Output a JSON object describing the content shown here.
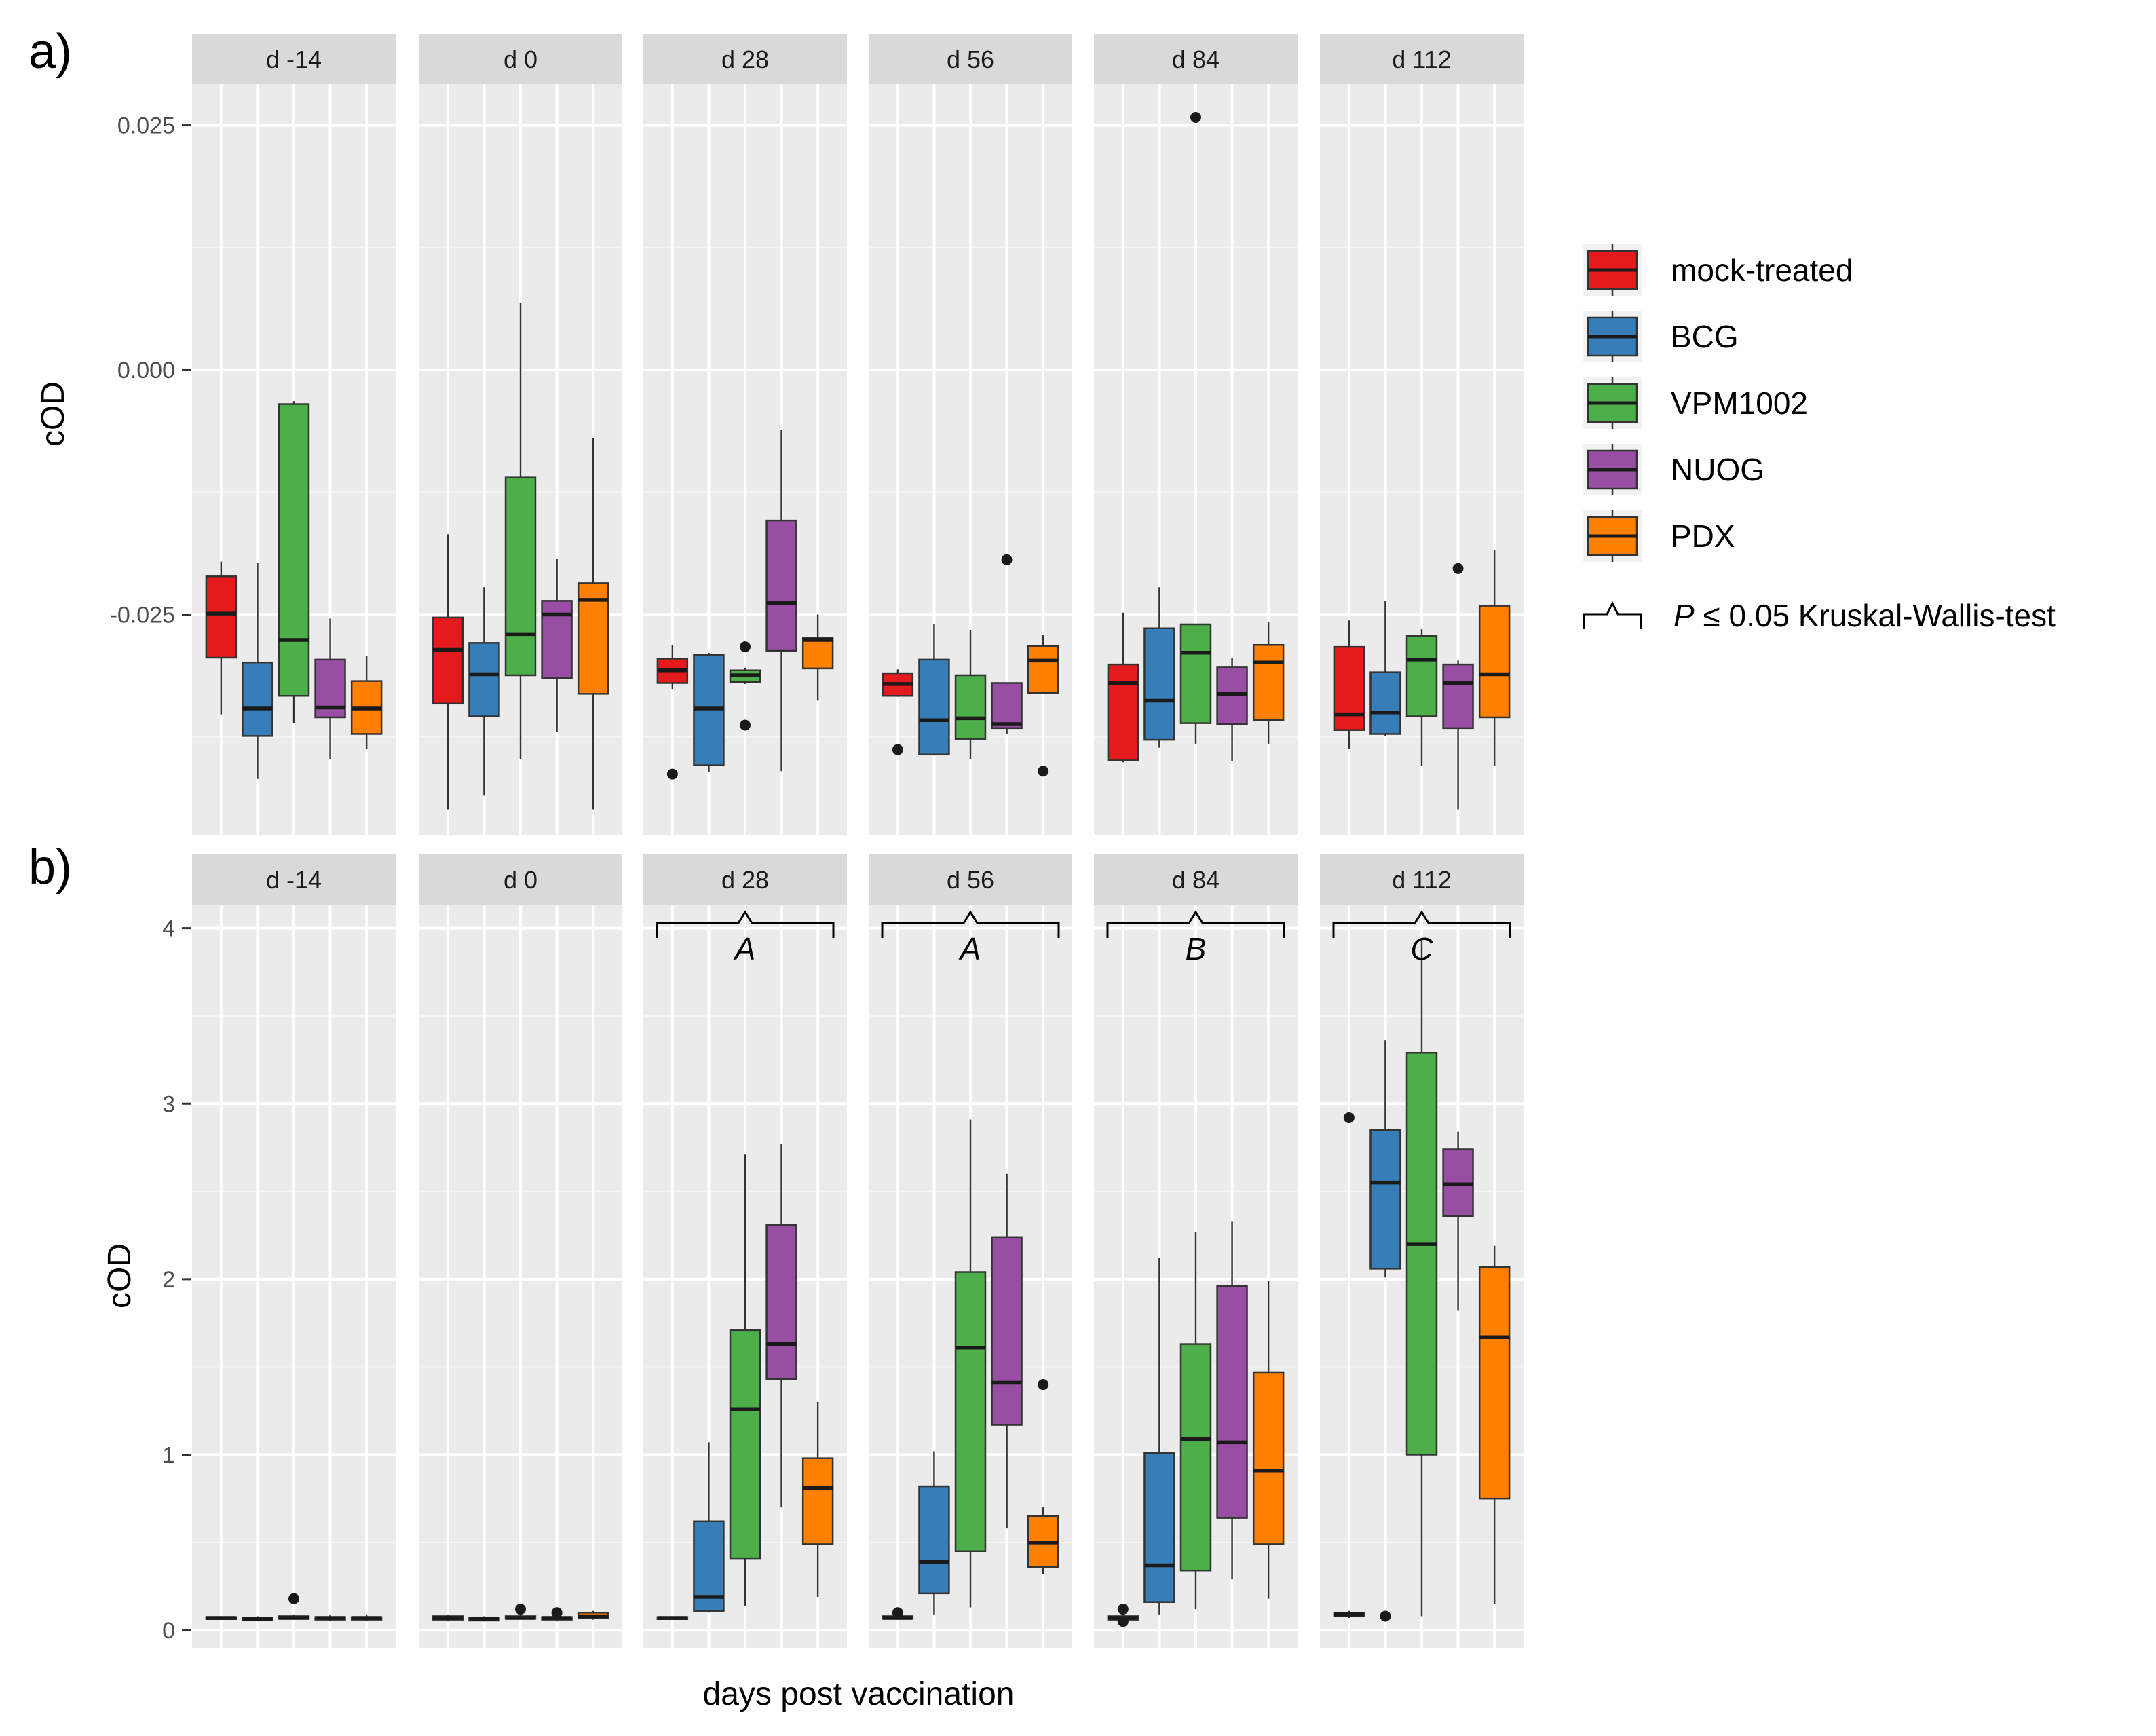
{
  "figure": {
    "panel_a_label": "a)",
    "panel_b_label": "b)",
    "xlabel": "days post vaccination",
    "ylabel": "cOD",
    "legend_sig_prefix": "P",
    "legend_sig_suffix": "≤ 0.05  Kruskal-Wallis-test"
  },
  "colors": {
    "mock-treated": "#E41A1C",
    "BCG": "#377EB8",
    "VPM1002": "#4DAF4A",
    "NUOG": "#984EA3",
    "PDX": "#FF7F00"
  },
  "chart_data": [
    {
      "panel": "a",
      "type": "box",
      "ylabel": "cOD",
      "xlabel": "",
      "ylim": [
        -0.0475,
        0.0292
      ],
      "yticks": [
        -0.025,
        0.0,
        0.025
      ],
      "ytick_labels": [
        "-0.025",
        "0.000",
        "0.025"
      ],
      "groups": [
        "mock-treated",
        "BCG",
        "VPM1002",
        "NUOG",
        "PDX"
      ],
      "facets": [
        {
          "label": "d -14",
          "boxes": [
            {
              "whislo": -0.0352,
              "q1": -0.0294,
              "med": -0.0249,
              "q3": -0.0211,
              "whishi": -0.0196,
              "outliers": []
            },
            {
              "whislo": -0.0418,
              "q1": -0.0374,
              "med": -0.0346,
              "q3": -0.0299,
              "whishi": -0.0197,
              "outliers": []
            },
            {
              "whislo": -0.0361,
              "q1": -0.0333,
              "med": -0.0276,
              "q3": -0.0035,
              "whishi": -0.0032,
              "outliers": []
            },
            {
              "whislo": -0.0398,
              "q1": -0.0355,
              "med": -0.0345,
              "q3": -0.0296,
              "whishi": -0.0254,
              "outliers": []
            },
            {
              "whislo": -0.0387,
              "q1": -0.0372,
              "med": -0.0346,
              "q3": -0.0318,
              "whishi": -0.0292,
              "outliers": []
            }
          ]
        },
        {
          "label": "d 0",
          "boxes": [
            {
              "whislo": -0.0449,
              "q1": -0.0341,
              "med": -0.0286,
              "q3": -0.0253,
              "whishi": -0.0168,
              "outliers": []
            },
            {
              "whislo": -0.0435,
              "q1": -0.0354,
              "med": -0.0311,
              "q3": -0.0279,
              "whishi": -0.0222,
              "outliers": []
            },
            {
              "whislo": -0.0398,
              "q1": -0.0312,
              "med": -0.027,
              "q3": -0.011,
              "whishi": 0.0068,
              "outliers": []
            },
            {
              "whislo": -0.037,
              "q1": -0.0315,
              "med": -0.025,
              "q3": -0.0236,
              "whishi": -0.0193,
              "outliers": []
            },
            {
              "whislo": -0.0449,
              "q1": -0.0331,
              "med": -0.0235,
              "q3": -0.0218,
              "whishi": -0.007,
              "outliers": []
            }
          ]
        },
        {
          "label": "d 28",
          "boxes": [
            {
              "whislo": -0.0326,
              "q1": -0.032,
              "med": -0.0307,
              "q3": -0.0295,
              "whishi": -0.0281,
              "outliers": [
                -0.0413
              ]
            },
            {
              "whislo": -0.0411,
              "q1": -0.0404,
              "med": -0.0346,
              "q3": -0.0291,
              "whishi": -0.0289,
              "outliers": []
            },
            {
              "whislo": -0.0321,
              "q1": -0.0319,
              "med": -0.0312,
              "q3": -0.0307,
              "whishi": -0.0305,
              "outliers": [
                -0.0283,
                -0.0363
              ]
            },
            {
              "whislo": -0.041,
              "q1": -0.0287,
              "med": -0.0238,
              "q3": -0.0154,
              "whishi": -0.0061,
              "outliers": []
            },
            {
              "whislo": -0.0338,
              "q1": -0.0305,
              "med": -0.0276,
              "q3": -0.0274,
              "whishi": -0.025,
              "outliers": []
            }
          ]
        },
        {
          "label": "d 56",
          "boxes": [
            {
              "whislo": -0.0334,
              "q1": -0.0333,
              "med": -0.0321,
              "q3": -0.031,
              "whishi": -0.0306,
              "outliers": [
                -0.0388
              ]
            },
            {
              "whislo": -0.0394,
              "q1": -0.0393,
              "med": -0.0358,
              "q3": -0.0296,
              "whishi": -0.026,
              "outliers": []
            },
            {
              "whislo": -0.0398,
              "q1": -0.0377,
              "med": -0.0356,
              "q3": -0.0312,
              "whishi": -0.0266,
              "outliers": []
            },
            {
              "whislo": -0.0372,
              "q1": -0.0366,
              "med": -0.0362,
              "q3": -0.032,
              "whishi": -0.032,
              "outliers": [
                -0.0194
              ]
            },
            {
              "whislo": -0.0331,
              "q1": -0.033,
              "med": -0.0297,
              "q3": -0.0282,
              "whishi": -0.0271,
              "outliers": [
                -0.041
              ]
            }
          ]
        },
        {
          "label": "d 84",
          "boxes": [
            {
              "whislo": -0.0401,
              "q1": -0.0399,
              "med": -0.032,
              "q3": -0.0301,
              "whishi": -0.0248,
              "outliers": []
            },
            {
              "whislo": -0.0386,
              "q1": -0.0378,
              "med": -0.0338,
              "q3": -0.0264,
              "whishi": -0.0222,
              "outliers": []
            },
            {
              "whislo": -0.0382,
              "q1": -0.0361,
              "med": -0.0289,
              "q3": -0.026,
              "whishi": -0.026,
              "outliers": [
                0.0258
              ]
            },
            {
              "whislo": -0.04,
              "q1": -0.0362,
              "med": -0.0331,
              "q3": -0.0304,
              "whishi": -0.0294,
              "outliers": []
            },
            {
              "whislo": -0.0382,
              "q1": -0.0358,
              "med": -0.0299,
              "q3": -0.0281,
              "whishi": -0.0258,
              "outliers": []
            }
          ]
        },
        {
          "label": "d 112",
          "boxes": [
            {
              "whislo": -0.0387,
              "q1": -0.0368,
              "med": -0.0352,
              "q3": -0.0283,
              "whishi": -0.0256,
              "outliers": []
            },
            {
              "whislo": -0.0374,
              "q1": -0.0372,
              "med": -0.035,
              "q3": -0.0309,
              "whishi": -0.0236,
              "outliers": []
            },
            {
              "whislo": -0.0405,
              "q1": -0.0354,
              "med": -0.0296,
              "q3": -0.0272,
              "whishi": -0.0265,
              "outliers": []
            },
            {
              "whislo": -0.0449,
              "q1": -0.0366,
              "med": -0.032,
              "q3": -0.0301,
              "whishi": -0.0297,
              "outliers": [
                -0.0203
              ]
            },
            {
              "whislo": -0.0405,
              "q1": -0.0355,
              "med": -0.0311,
              "q3": -0.0241,
              "whishi": -0.0184,
              "outliers": []
            }
          ]
        }
      ]
    },
    {
      "panel": "b",
      "type": "box",
      "ylabel": "cOD",
      "xlabel": "days post vaccination",
      "ylim": [
        -0.1,
        4.13
      ],
      "yticks": [
        0,
        1,
        2,
        3,
        4
      ],
      "ytick_labels": [
        "0",
        "1",
        "2",
        "3",
        "4"
      ],
      "groups": [
        "mock-treated",
        "BCG",
        "VPM1002",
        "NUOG",
        "PDX"
      ],
      "significance_letters": [
        "",
        "",
        "A",
        "A",
        "B",
        "C"
      ],
      "facets": [
        {
          "label": "d -14",
          "boxes": [
            {
              "whislo": 0.06,
              "q1": 0.065,
              "med": 0.07,
              "q3": 0.075,
              "whishi": 0.08,
              "outliers": []
            },
            {
              "whislo": 0.05,
              "q1": 0.06,
              "med": 0.065,
              "q3": 0.07,
              "whishi": 0.08,
              "outliers": []
            },
            {
              "whislo": 0.06,
              "q1": 0.065,
              "med": 0.07,
              "q3": 0.08,
              "whishi": 0.09,
              "outliers": [
                0.18
              ]
            },
            {
              "whislo": 0.05,
              "q1": 0.06,
              "med": 0.07,
              "q3": 0.075,
              "whishi": 0.09,
              "outliers": []
            },
            {
              "whislo": 0.05,
              "q1": 0.06,
              "med": 0.07,
              "q3": 0.075,
              "whishi": 0.09,
              "outliers": []
            }
          ]
        },
        {
          "label": "d 0",
          "boxes": [
            {
              "whislo": 0.05,
              "q1": 0.06,
              "med": 0.07,
              "q3": 0.08,
              "whishi": 0.09,
              "outliers": []
            },
            {
              "whislo": 0.05,
              "q1": 0.055,
              "med": 0.065,
              "q3": 0.07,
              "whishi": 0.08,
              "outliers": []
            },
            {
              "whislo": 0.06,
              "q1": 0.065,
              "med": 0.07,
              "q3": 0.08,
              "whishi": 0.09,
              "outliers": [
                0.12
              ]
            },
            {
              "whislo": 0.05,
              "q1": 0.06,
              "med": 0.07,
              "q3": 0.075,
              "whishi": 0.08,
              "outliers": [
                0.1
              ]
            },
            {
              "whislo": 0.06,
              "q1": 0.07,
              "med": 0.08,
              "q3": 0.1,
              "whishi": 0.11,
              "outliers": []
            }
          ]
        },
        {
          "label": "d 28",
          "boxes": [
            {
              "whislo": 0.06,
              "q1": 0.065,
              "med": 0.07,
              "q3": 0.075,
              "whishi": 0.08,
              "outliers": []
            },
            {
              "whislo": 0.1,
              "q1": 0.11,
              "med": 0.19,
              "q3": 0.62,
              "whishi": 1.07,
              "outliers": []
            },
            {
              "whislo": 0.14,
              "q1": 0.41,
              "med": 1.26,
              "q3": 1.71,
              "whishi": 2.71,
              "outliers": []
            },
            {
              "whislo": 0.7,
              "q1": 1.43,
              "med": 1.63,
              "q3": 2.31,
              "whishi": 2.77,
              "outliers": []
            },
            {
              "whislo": 0.19,
              "q1": 0.49,
              "med": 0.81,
              "q3": 0.98,
              "whishi": 1.3,
              "outliers": []
            }
          ]
        },
        {
          "label": "d 56",
          "boxes": [
            {
              "whislo": 0.06,
              "q1": 0.065,
              "med": 0.07,
              "q3": 0.08,
              "whishi": 0.09,
              "outliers": [
                0.1
              ]
            },
            {
              "whislo": 0.09,
              "q1": 0.21,
              "med": 0.39,
              "q3": 0.82,
              "whishi": 1.02,
              "outliers": []
            },
            {
              "whislo": 0.13,
              "q1": 0.45,
              "med": 1.61,
              "q3": 2.04,
              "whishi": 2.91,
              "outliers": []
            },
            {
              "whislo": 0.58,
              "q1": 1.17,
              "med": 1.41,
              "q3": 2.24,
              "whishi": 2.6,
              "outliers": []
            },
            {
              "whislo": 0.32,
              "q1": 0.36,
              "med": 0.5,
              "q3": 0.65,
              "whishi": 0.7,
              "outliers": [
                1.4
              ]
            }
          ]
        },
        {
          "label": "d 84",
          "boxes": [
            {
              "whislo": 0.05,
              "q1": 0.06,
              "med": 0.07,
              "q3": 0.08,
              "whishi": 0.09,
              "outliers": [
                0.12,
                0.05
              ]
            },
            {
              "whislo": 0.09,
              "q1": 0.16,
              "med": 0.37,
              "q3": 1.01,
              "whishi": 2.12,
              "outliers": []
            },
            {
              "whislo": 0.12,
              "q1": 0.34,
              "med": 1.09,
              "q3": 1.63,
              "whishi": 2.27,
              "outliers": []
            },
            {
              "whislo": 0.29,
              "q1": 0.64,
              "med": 1.07,
              "q3": 1.96,
              "whishi": 2.33,
              "outliers": []
            },
            {
              "whislo": 0.18,
              "q1": 0.49,
              "med": 0.91,
              "q3": 1.47,
              "whishi": 1.99,
              "outliers": []
            }
          ]
        },
        {
          "label": "d 112",
          "boxes": [
            {
              "whislo": 0.07,
              "q1": 0.08,
              "med": 0.09,
              "q3": 0.1,
              "whishi": 0.11,
              "outliers": [
                2.92
              ]
            },
            {
              "whislo": 2.01,
              "q1": 2.06,
              "med": 2.55,
              "q3": 2.85,
              "whishi": 3.36,
              "outliers": [
                0.08
              ]
            },
            {
              "whislo": 0.08,
              "q1": 1.0,
              "med": 2.2,
              "q3": 3.29,
              "whishi": 3.93,
              "outliers": []
            },
            {
              "whislo": 1.82,
              "q1": 2.36,
              "med": 2.54,
              "q3": 2.74,
              "whishi": 2.84,
              "outliers": []
            },
            {
              "whislo": 0.15,
              "q1": 0.75,
              "med": 1.67,
              "q3": 2.07,
              "whishi": 2.19,
              "outliers": []
            }
          ]
        }
      ]
    }
  ]
}
